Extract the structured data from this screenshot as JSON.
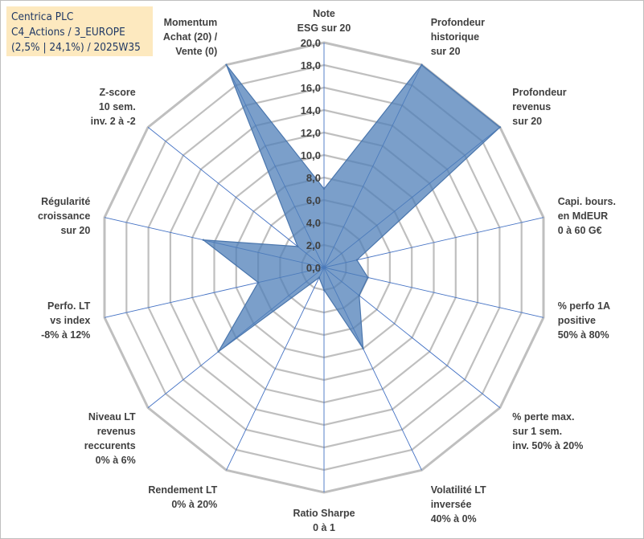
{
  "title_box": {
    "line1": "Centrica PLC",
    "line2": "C4_Actions / 3_EUROPE",
    "line3": "(2,5% | 24,1%) / 2025W35",
    "background": "#fde9bf",
    "text_color": "#1f3864"
  },
  "chart_data": {
    "type": "radar",
    "rmin": 0,
    "rmax": 20,
    "tick_step": 2,
    "tick_labels": [
      "0,0",
      "2,0",
      "4,0",
      "6,0",
      "8,0",
      "10,0",
      "12,0",
      "14,0",
      "16,0",
      "18,0",
      "20,0"
    ],
    "axes": [
      [
        "Note",
        "ESG sur 20"
      ],
      [
        "Profondeur",
        "historique",
        "sur 20"
      ],
      [
        "Profondeur",
        "revenus",
        "sur 20"
      ],
      [
        "Capi. bours.",
        "en MdEUR",
        "0 à 60 G€"
      ],
      [
        "% perfo 1A",
        "positive",
        "50% à 80%"
      ],
      [
        "% perte max.",
        "sur 1 sem.",
        "inv. 50% à 20%"
      ],
      [
        "Volatilité LT",
        "inversée",
        "40% à 0%"
      ],
      [
        "Ratio Sharpe",
        "0 à 1"
      ],
      [
        "Rendement LT",
        "0% à 20%"
      ],
      [
        "Niveau LT",
        "revenus",
        "reccurents",
        "0% à 6%"
      ],
      [
        "Perfo. LT",
        "vs index",
        "-8% à 12%"
      ],
      [
        "Régularité",
        "croissance",
        "sur 20"
      ],
      [
        "Z-score",
        "10 sem.",
        "inv. 2 à -2"
      ],
      [
        "Momentum",
        "Achat (20) /",
        "Vente (0)"
      ]
    ],
    "series": [
      {
        "values": [
          7.0,
          20.0,
          20.0,
          3.0,
          4.0,
          4.0,
          8.0,
          2.0,
          1.0,
          12.0,
          6.0,
          11.0,
          3.0,
          20.0
        ],
        "fill": "#4f7fb8",
        "fill_opacity": 0.75,
        "stroke": "#4a76ad"
      }
    ],
    "grid": true,
    "grid_color": "#bfbfbf",
    "spoke_color": "#4472c4"
  }
}
